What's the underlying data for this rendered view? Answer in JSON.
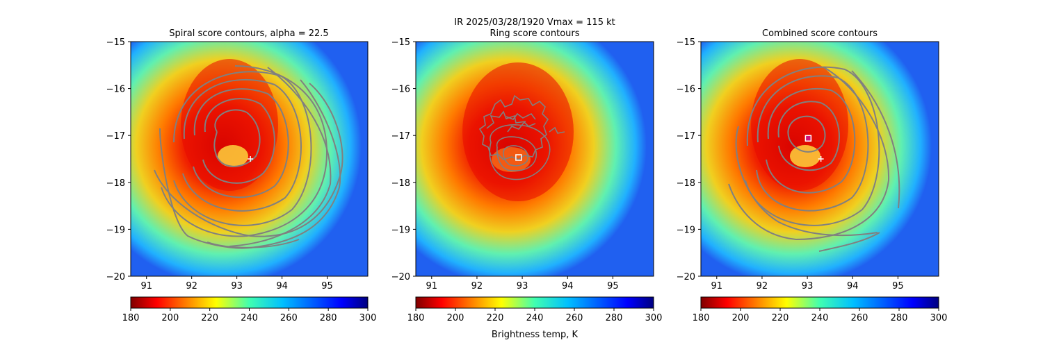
{
  "figure": {
    "suptitle_line1": "IR  2025/03/28/1920    Vmax = 115 kt",
    "colorbar_label": "Brightness temp, K"
  },
  "chart_data": [
    {
      "type": "heatmap",
      "title": "Spiral score contours, alpha = 22.5",
      "x_ticks": [
        91,
        92,
        93,
        94,
        95
      ],
      "y_ticks": [
        -15,
        -16,
        -17,
        -18,
        -19,
        -20
      ],
      "xlim": [
        90.65,
        95.9
      ],
      "ylim": [
        -20,
        -15
      ],
      "contours": "spiral",
      "markers": [
        {
          "symbol": "plus",
          "x": 93.3,
          "y": -17.5,
          "color": "#ffffff"
        }
      ],
      "colorbar": {
        "ticks": [
          180,
          200,
          220,
          240,
          260,
          280,
          300
        ],
        "range": [
          180,
          300
        ],
        "colormap": "jet_r"
      }
    },
    {
      "type": "heatmap",
      "title": "Ring score contours",
      "x_ticks": [
        91,
        92,
        93,
        94,
        95
      ],
      "y_ticks": [
        -15,
        -16,
        -17,
        -18,
        -19,
        -20
      ],
      "xlim": [
        90.65,
        95.9
      ],
      "ylim": [
        -20,
        -15
      ],
      "contours": "ring",
      "markers": [
        {
          "symbol": "square",
          "x": 92.92,
          "y": -17.47,
          "color": "#ffffff"
        }
      ],
      "colorbar": {
        "ticks": [
          180,
          200,
          220,
          240,
          260,
          280,
          300
        ],
        "range": [
          180,
          300
        ],
        "colormap": "jet_r"
      }
    },
    {
      "type": "heatmap",
      "title": "Combined score contours",
      "x_ticks": [
        91,
        92,
        93,
        94,
        95
      ],
      "y_ticks": [
        -15,
        -16,
        -17,
        -18,
        -19,
        -20
      ],
      "xlim": [
        90.65,
        95.9
      ],
      "ylim": [
        -20,
        -15
      ],
      "contours": "spiral",
      "markers": [
        {
          "symbol": "plus",
          "x": 93.3,
          "y": -17.5,
          "color": "#ffffff"
        },
        {
          "symbol": "square",
          "x": 93.02,
          "y": -17.06,
          "color": "#d0147a"
        }
      ],
      "colorbar": {
        "ticks": [
          180,
          200,
          220,
          240,
          260,
          280,
          300
        ],
        "range": [
          180,
          300
        ],
        "colormap": "jet_r"
      }
    }
  ]
}
